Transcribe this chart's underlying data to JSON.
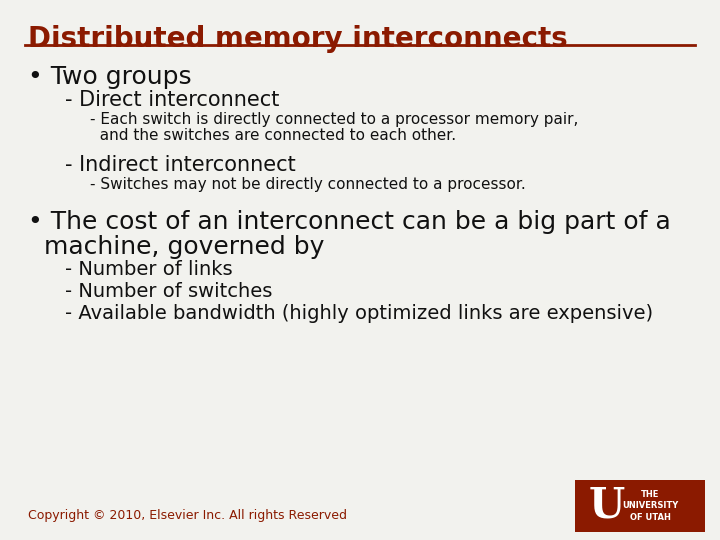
{
  "title": "Distributed memory interconnects",
  "title_color": "#8B1A00",
  "title_fontsize": 20,
  "rule_color": "#8B1A00",
  "bg_color": "#F2F2EE",
  "body_color": "#111111",
  "bullet1_text": "• Two groups",
  "bullet1_size": 18,
  "sub1_text": "- Direct interconnect",
  "sub1_size": 15,
  "sub2a_text": "- Each switch is directly connected to a processor memory pair,",
  "sub2b_text": "  and the switches are connected to each other.",
  "sub2_size": 11,
  "sub1b_text": "- Indirect interconnect",
  "sub1b_size": 15,
  "sub2c_text": "- Switches may not be directly connected to a processor.",
  "sub2c_size": 11,
  "bullet2_line1": "• The cost of an interconnect can be a big part of a",
  "bullet2_line2": "  machine, governed by",
  "bullet2_size": 18,
  "sub3a_text": "- Number of links",
  "sub3b_text": "- Number of switches",
  "sub3c_text": "- Available bandwidth (highly optimized links are expensive)",
  "sub3_size": 14,
  "copyright_text": "Copyright © 2010, Elsevier Inc. All rights Reserved",
  "copyright_color": "#8B1A00",
  "copyright_size": 9,
  "logo_color": "#8B1A00"
}
